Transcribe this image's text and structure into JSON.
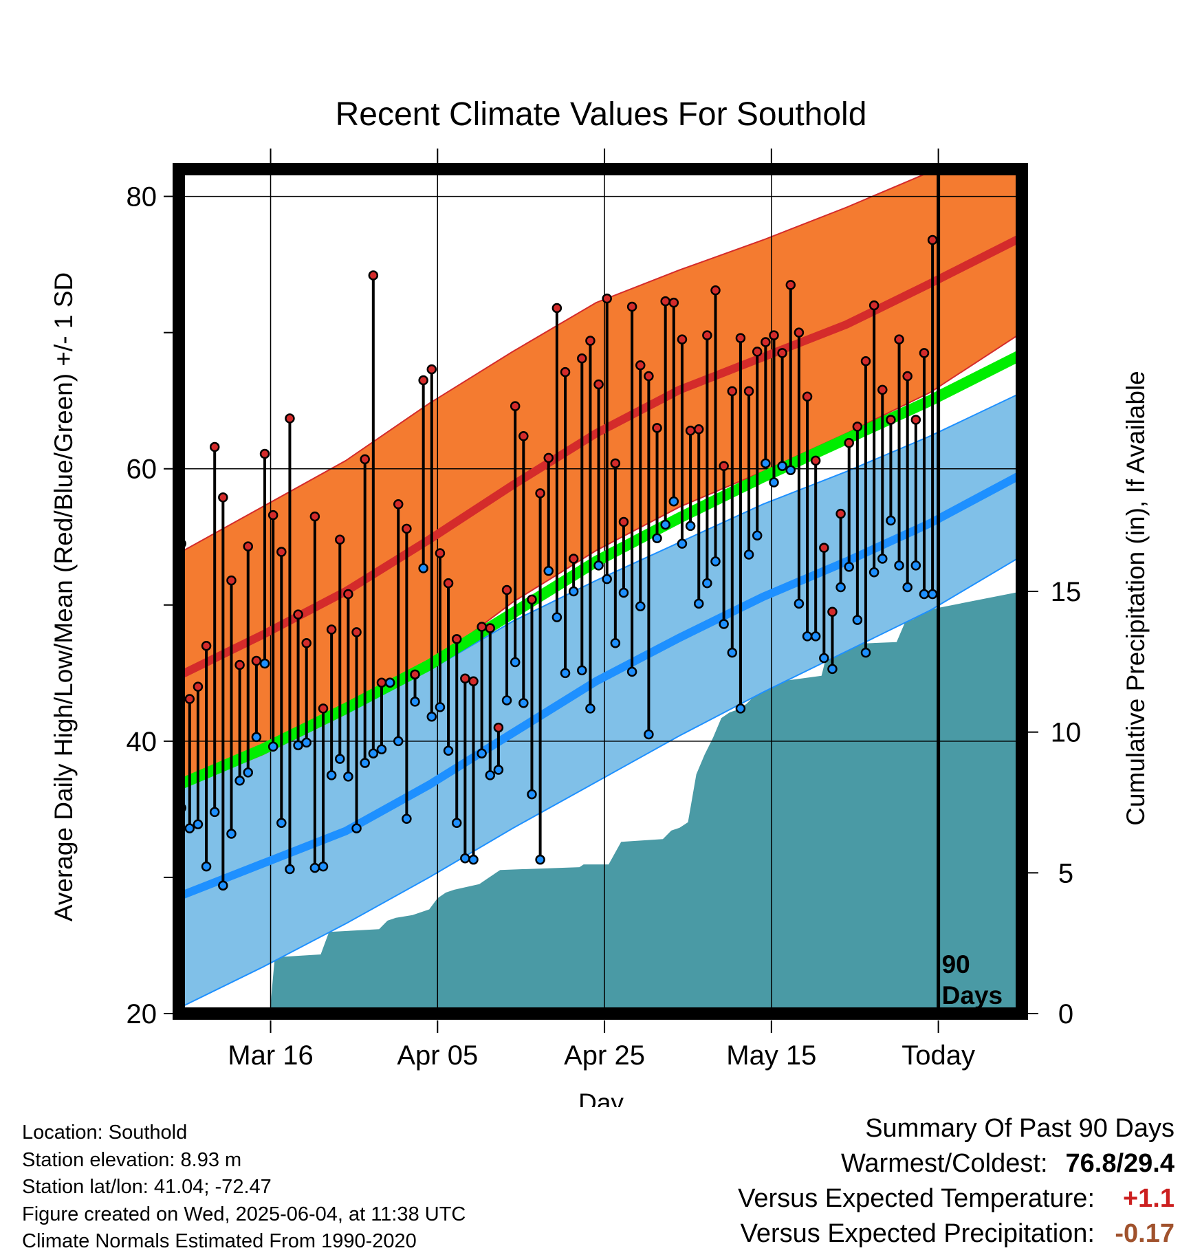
{
  "chart_data": {
    "type": "line",
    "title": "Recent Climate Values For Southold",
    "xlabel": "Day",
    "ylabel_left": "Average Daily High/Low/Mean (Red/Blue/Green) +/- 1 SD",
    "ylabel_right": "Cumulative Precipitation (in), If Available",
    "x_tick_labels": [
      "Mar 16",
      "Apr 05",
      "Apr 25",
      "May 15",
      "Today"
    ],
    "x_tick_days": [
      11,
      31,
      51,
      71,
      91
    ],
    "x_range": [
      0,
      101
    ],
    "ylim_left": [
      20,
      82
    ],
    "y_ticks_left": [
      20,
      40,
      60,
      80
    ],
    "ylim_right": [
      0,
      30
    ],
    "y_ticks_right": [
      0,
      5,
      10,
      15
    ],
    "today_marker": {
      "day": 91,
      "label_line1": "90",
      "label_line2": "Days"
    },
    "colors": {
      "high_band": "#f47b30",
      "high_mean": "#d42b2b",
      "low_band": "#80c0e8",
      "low_mean": "#1e90ff",
      "mean_line": "#00ee00",
      "precip": "#4a9aa5",
      "high_dot": "#d42b2b",
      "low_dot": "#1e90ff"
    },
    "normals": {
      "days": [
        0,
        10,
        20,
        30,
        40,
        50,
        60,
        70,
        80,
        90,
        101
      ],
      "high_upper": [
        53.8,
        57.2,
        60.6,
        64.8,
        68.6,
        72.2,
        74.6,
        76.8,
        79.2,
        81.8,
        84.6
      ],
      "high_mean": [
        44.8,
        47.8,
        51.0,
        54.8,
        58.8,
        62.6,
        65.8,
        68.2,
        70.6,
        73.6,
        77.0
      ],
      "high_lower": [
        36.5,
        39.0,
        42.0,
        45.6,
        50.2,
        54.0,
        57.2,
        59.8,
        62.6,
        65.6,
        70.0
      ],
      "mean": [
        36.8,
        39.4,
        42.4,
        45.6,
        49.4,
        53.2,
        56.4,
        59.4,
        62.2,
        65.0,
        68.4
      ],
      "low_upper": [
        37.6,
        39.6,
        42.0,
        45.2,
        48.8,
        51.8,
        54.6,
        57.4,
        59.8,
        62.4,
        65.6
      ],
      "low_mean": [
        28.6,
        31.0,
        33.4,
        36.8,
        40.6,
        44.4,
        47.6,
        50.6,
        53.2,
        56.0,
        59.6
      ],
      "low_lower": [
        20.4,
        23.4,
        26.6,
        30.0,
        33.6,
        37.0,
        40.4,
        43.6,
        46.6,
        49.6,
        53.6
      ]
    },
    "daily_highs": [
      54.5,
      43.1,
      44.0,
      47.0,
      61.6,
      57.9,
      51.8,
      45.6,
      54.3,
      45.9,
      61.1,
      56.6,
      53.9,
      63.7,
      49.3,
      47.2,
      56.5,
      42.4,
      48.2,
      54.8,
      50.8,
      48.0,
      60.7,
      74.2,
      44.3,
      44.3,
      57.4,
      55.6,
      44.9,
      66.5,
      67.3,
      53.8,
      51.6,
      47.5,
      44.6,
      44.4,
      48.4,
      48.3,
      41.0,
      51.1,
      64.6,
      62.4,
      50.4,
      58.2,
      60.8,
      71.8,
      67.1,
      53.4,
      68.1,
      69.4,
      66.2,
      72.5,
      60.4,
      56.1,
      71.9,
      67.6,
      66.8,
      63.0,
      72.3,
      72.2,
      69.5,
      62.8,
      62.9,
      69.8,
      73.1,
      60.2,
      65.7,
      69.6,
      65.7,
      68.6,
      69.3,
      69.8,
      68.5,
      73.5,
      70.0,
      65.3,
      60.6,
      54.2,
      49.5,
      56.7,
      61.9,
      63.1,
      67.9,
      72.0,
      65.8,
      63.6,
      69.5,
      66.8,
      63.6,
      68.5,
      76.8
    ],
    "daily_lows": [
      35.1,
      33.6,
      33.9,
      30.8,
      34.8,
      29.4,
      33.2,
      37.1,
      37.7,
      40.3,
      45.7,
      39.6,
      34.0,
      30.6,
      39.7,
      39.9,
      30.7,
      30.8,
      37.5,
      38.7,
      37.4,
      33.6,
      38.4,
      39.1,
      39.4,
      44.3,
      40.0,
      34.3,
      42.9,
      52.7,
      41.8,
      42.5,
      39.3,
      34.0,
      31.4,
      31.3,
      39.1,
      37.5,
      37.9,
      43.0,
      45.8,
      42.8,
      36.1,
      31.3,
      52.5,
      49.1,
      45.0,
      51.0,
      45.2,
      42.4,
      52.9,
      51.9,
      47.2,
      50.9,
      45.1,
      49.9,
      40.5,
      54.9,
      55.9,
      57.6,
      54.5,
      55.8,
      50.1,
      51.6,
      53.2,
      48.6,
      46.5,
      42.4,
      53.7,
      55.1,
      60.4,
      59.0,
      60.2,
      59.9,
      50.1,
      47.7,
      47.7,
      46.1,
      45.3,
      51.3,
      52.8,
      48.9,
      46.5,
      52.4,
      53.4,
      56.2,
      52.9,
      51.3,
      52.9,
      50.8,
      50.8
    ],
    "precip_cumulative": {
      "days": [
        0,
        10,
        10.9,
        11.5,
        17,
        18,
        24,
        25,
        26,
        28,
        30,
        31,
        32,
        33,
        36,
        37,
        38,
        38.5,
        48,
        48.5,
        51,
        51.5,
        53,
        58,
        59,
        60,
        61,
        62,
        63,
        64,
        65,
        66,
        67,
        68,
        69,
        70,
        71,
        72,
        77,
        77.5,
        78,
        86,
        87,
        88,
        89,
        101
      ],
      "values": [
        0,
        0,
        0,
        2.0,
        2.1,
        2.9,
        3.0,
        3.3,
        3.4,
        3.5,
        3.7,
        4.1,
        4.3,
        4.4,
        4.6,
        4.8,
        5.0,
        5.1,
        5.2,
        5.3,
        5.3,
        5.3,
        6.1,
        6.2,
        6.5,
        6.6,
        6.8,
        8.5,
        9.2,
        9.8,
        10.5,
        10.7,
        10.8,
        11.0,
        11.3,
        11.6,
        11.7,
        11.8,
        12.0,
        12.6,
        13.1,
        13.2,
        13.9,
        14.0,
        14.3,
        15.0
      ]
    }
  },
  "footer": {
    "location": "Location: Southold",
    "elevation": "Station elevation: 8.93 m",
    "latlon": "Station lat/lon: 41.04; -72.47",
    "created": "Figure created on Wed, 2025-06-04, at 11:38 UTC",
    "normals": "Climate Normals Estimated From 1990-2020"
  },
  "summary": {
    "title": "Summary Of Past 90 Days",
    "warm_cold_label": "Warmest/Coldest:",
    "warm_cold_value": "76.8/29.4",
    "temp_label": "Versus Expected Temperature:",
    "temp_value": "+1.1",
    "precip_label": "Versus Expected Precipitation:",
    "precip_value": "-0.17"
  }
}
